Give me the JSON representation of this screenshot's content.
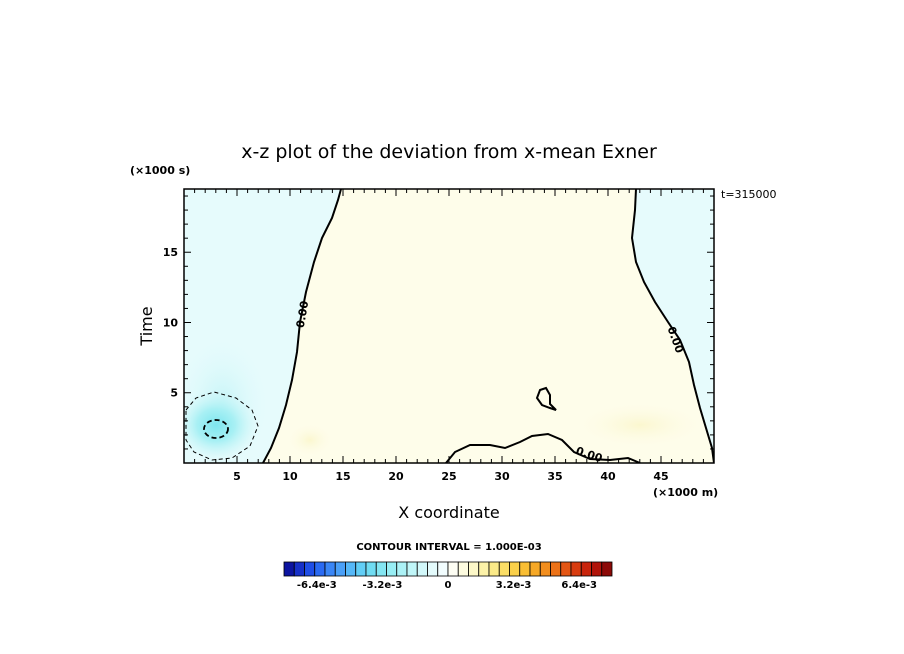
{
  "chart_data": {
    "type": "heatmap",
    "title": "x-z plot of the deviation from x-mean Exner",
    "xlabel": "X coordinate",
    "ylabel": "Time",
    "x_unit": "(×1000 m)",
    "y_unit": "(×1000 s)",
    "time_stamp": "t=315000",
    "xlim": [
      0,
      50
    ],
    "ylim": [
      0,
      19.5
    ],
    "xticks": [
      5,
      10,
      15,
      20,
      25,
      30,
      35,
      40,
      45
    ],
    "yticks": [
      5,
      10,
      15
    ],
    "contour_interval": "CONTOUR INTERVAL = 1.000E-03",
    "contour_label": "0.00",
    "colorbar": {
      "min": -0.008,
      "max": 0.008,
      "tick_labels": [
        "-6.4e-3",
        "-3.2e-3",
        "0",
        "3.2e-3",
        "6.4e-3"
      ],
      "tick_values": [
        -0.0064,
        -0.0032,
        0,
        0.0032,
        0.0064
      ]
    },
    "fill_regions": [
      {
        "name": "positive-central",
        "level": 0.0002
      },
      {
        "name": "negative-left",
        "level": -0.0003
      },
      {
        "name": "negative-right",
        "level": -0.0002
      },
      {
        "name": "minimum-core",
        "level": -0.0035
      }
    ]
  }
}
